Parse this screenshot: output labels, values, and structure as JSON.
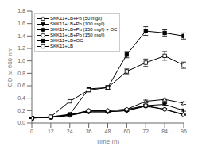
{
  "chart_data": {
    "type": "line",
    "xlabel": "Time (h)",
    "ylabel": "OD at 600 nm",
    "x": [
      0,
      12,
      24,
      36,
      48,
      60,
      72,
      84,
      96
    ],
    "series": [
      {
        "name": "SKK11+LB+Pb (50 mg/l)",
        "color": "#000000",
        "marker": "triangle_up_open",
        "line_style": "solid",
        "values": [
          0.08,
          0.09,
          0.13,
          0.2,
          0.2,
          0.22,
          0.35,
          0.38,
          0.32
        ],
        "errors": [
          0.005,
          0.005,
          0.01,
          0.015,
          0.01,
          0.01,
          0.02,
          0.02,
          0.02
        ]
      },
      {
        "name": "SKK11+LB+Pb (100 mg/l)",
        "color": "#000000",
        "marker": "triangle_down_filled",
        "line_style": "solid",
        "values": [
          0.08,
          0.09,
          0.12,
          0.18,
          0.18,
          0.2,
          0.28,
          0.3,
          0.2
        ],
        "errors": [
          0.005,
          0.005,
          0.01,
          0.01,
          0.01,
          0.01,
          0.015,
          0.015,
          0.01
        ]
      },
      {
        "name": "SKK11+LB+Pb (150 mg/l) + OC",
        "color": "#000000",
        "marker": "circle_filled",
        "line_style": "solid",
        "values": [
          0.08,
          0.09,
          0.13,
          0.18,
          0.18,
          0.2,
          0.27,
          0.22,
          0.14
        ],
        "errors": [
          0.005,
          0.005,
          0.01,
          0.01,
          0.01,
          0.01,
          0.015,
          0.01,
          0.01
        ]
      },
      {
        "name": "SKK11+LB+Pb (150 mg/l)",
        "color": "#000000",
        "marker": "circle_open",
        "line_style": "solid",
        "values": [
          0.08,
          0.09,
          0.13,
          0.2,
          0.2,
          0.22,
          0.28,
          0.22,
          0.13
        ],
        "errors": [
          0.005,
          0.005,
          0.01,
          0.01,
          0.01,
          0.01,
          0.015,
          0.01,
          0.005
        ]
      },
      {
        "name": "SKK11+LB+OC",
        "color": "#000000",
        "marker": "square_filled",
        "line_style": "solid",
        "values": [
          0.08,
          0.1,
          0.14,
          0.55,
          0.57,
          1.1,
          1.48,
          1.45,
          1.4
        ],
        "errors": [
          0.005,
          0.01,
          0.01,
          0.03,
          0.03,
          0.05,
          0.07,
          0.05,
          0.05
        ]
      },
      {
        "name": "SKK11+LB",
        "color": "#000000",
        "marker": "square_open",
        "line_style": "solid",
        "values": [
          0.08,
          0.1,
          0.35,
          0.53,
          0.57,
          0.83,
          0.97,
          1.08,
          0.93
        ],
        "errors": [
          0.005,
          0.01,
          0.02,
          0.03,
          0.03,
          0.04,
          0.06,
          0.07,
          0.05
        ]
      }
    ],
    "xlim": [
      0,
      96
    ],
    "xticks": [
      0,
      12,
      24,
      36,
      48,
      60,
      72,
      84,
      96
    ],
    "ylim": [
      0,
      1.8
    ],
    "yticks": [
      {
        "value": 0,
        "label": "0.0"
      },
      0.2,
      0.4,
      0.6,
      0.8,
      {
        "value": 1,
        "label": "1.0"
      },
      1.2,
      1.4,
      1.6,
      1.8
    ],
    "legend": "upper left",
    "grid": false
  }
}
